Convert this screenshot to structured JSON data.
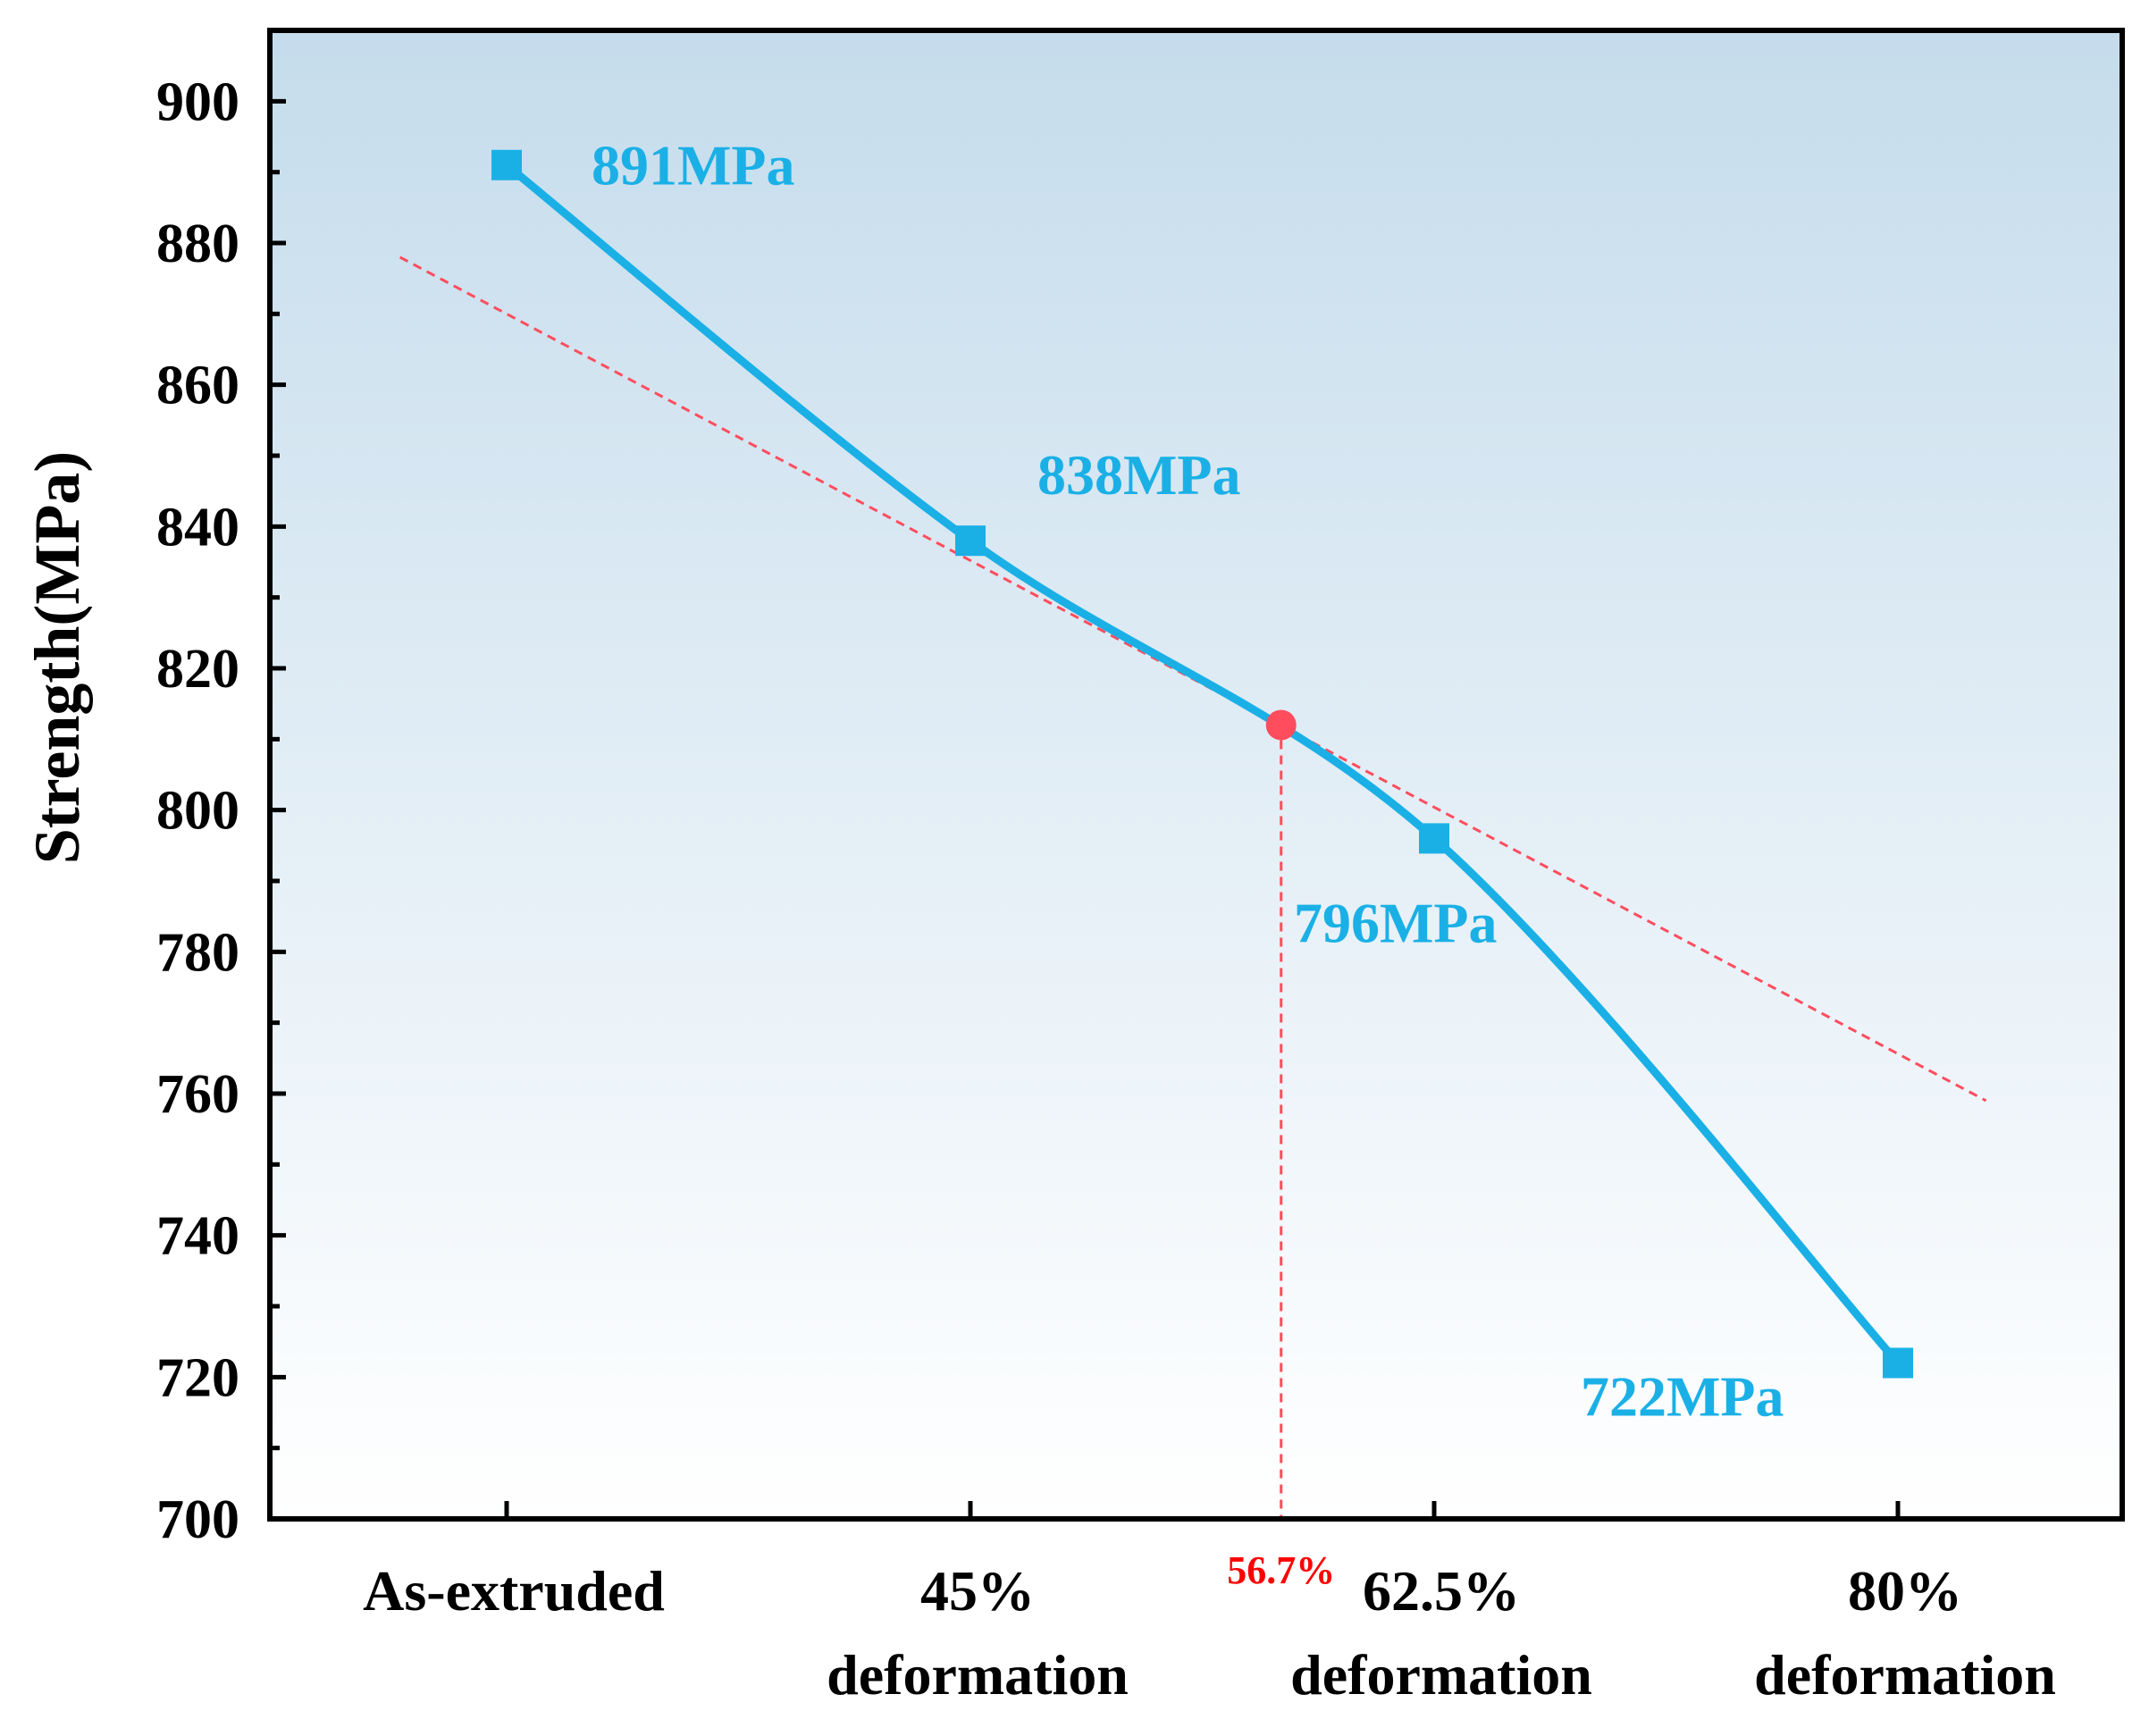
{
  "chart_data": {
    "type": "line",
    "ylabel": "Strength(MPa)",
    "xlabel": "",
    "ylim": [
      700,
      910
    ],
    "yticks": [
      700,
      720,
      740,
      760,
      780,
      800,
      820,
      840,
      860,
      880,
      900
    ],
    "categories": [
      [
        "As-extruded"
      ],
      [
        "45%",
        "deformation"
      ],
      [
        "62.5%",
        "deformation"
      ],
      [
        "80%",
        "deformation"
      ]
    ],
    "x_index": [
      0,
      1,
      2,
      3
    ],
    "values": [
      891,
      838,
      796,
      722
    ],
    "data_labels": [
      "891MPa",
      "838MPa",
      "796MPa",
      "722MPa"
    ],
    "series_color": "#1ab0e6",
    "trendline": {
      "color": "#ff4d5e",
      "start": {
        "x": -0.23,
        "y": 878
      },
      "end": {
        "x": 3.19,
        "y": 759
      }
    },
    "intersection": {
      "x": 1.67,
      "y": 812,
      "label": "56.7%",
      "color": "#ff4d5e",
      "label_color": "#ff0000"
    },
    "background_gradient": [
      "#c5dcec",
      "#ffffff"
    ]
  }
}
